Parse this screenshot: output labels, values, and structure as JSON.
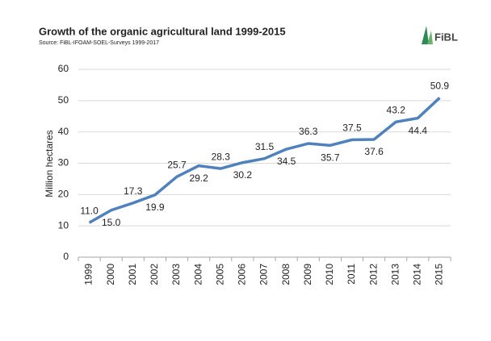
{
  "chart_data": {
    "type": "line",
    "title": "Growth of the organic agricultural land 1999-2015",
    "source": "Source: FiBL-IFOAM-SOEL-Surveys 1999-2017",
    "logo": "FiBL",
    "y_label": "Million hectares",
    "categories": [
      "1999",
      "2000",
      "2001",
      "2002",
      "2003",
      "2004",
      "2005",
      "2006",
      "2007",
      "2008",
      "2009",
      "2010",
      "2011",
      "2012",
      "2013",
      "2014",
      "2015"
    ],
    "series": [
      {
        "name": "Organic agricultural land",
        "color": "#4f81bd",
        "values": [
          11.0,
          15.0,
          17.3,
          19.9,
          25.7,
          29.2,
          28.3,
          30.2,
          31.5,
          34.5,
          36.3,
          35.7,
          37.5,
          37.6,
          43.2,
          44.4,
          50.9
        ],
        "value_labels": [
          "11.0",
          "15.0",
          "17.3",
          "19.9",
          "25.7",
          "29.2",
          "28.3",
          "30.2",
          "31.5",
          "34.5",
          "36.3",
          "35.7",
          "37.5",
          "37.6",
          "43.2",
          "44.4",
          "50.9"
        ]
      }
    ],
    "ylim": [
      0,
      60
    ],
    "yticks": [
      0,
      10,
      20,
      30,
      40,
      50,
      60
    ],
    "grid": true
  }
}
